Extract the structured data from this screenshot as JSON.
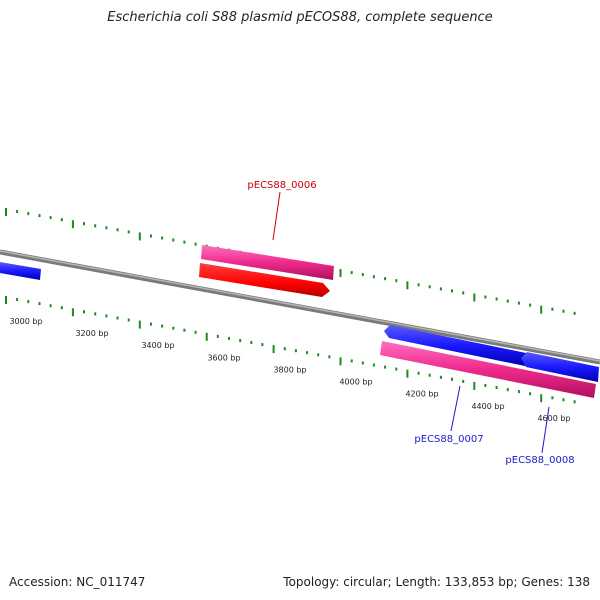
{
  "title": "Escherichia coli S88 plasmid pECOS88, complete sequence",
  "footer": {
    "accession": "Accession: NC_011747",
    "summary": "Topology: circular; Length: 133,853 bp; Genes: 138"
  },
  "colors": {
    "backbone": "#8a8a8a",
    "ticks": "#1e8a1e",
    "forward_gene": "#ff0000",
    "reverse_gene": "#1a1aff",
    "cds_band": "#ee2a8c",
    "label_forward": "#cc0000",
    "label_reverse": "#1a1acc"
  },
  "scale_labels": [
    "3000 bp",
    "3200 bp",
    "3400 bp",
    "3600 bp",
    "3800 bp",
    "4000 bp",
    "4200 bp",
    "4400 bp",
    "4600 bp"
  ],
  "gene_labels": {
    "gene_0006": "pECS88_0006",
    "gene_0007": "pECS88_0007",
    "gene_0008": "pECS88_0008"
  }
}
